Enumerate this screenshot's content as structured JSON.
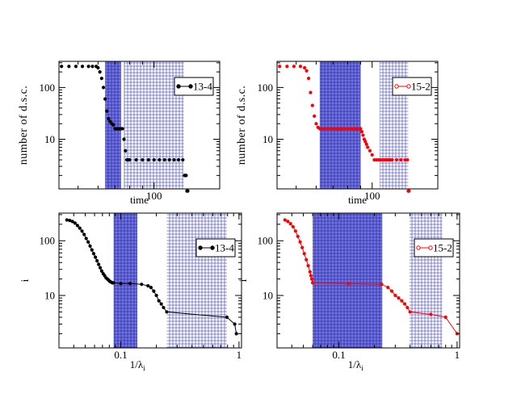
{
  "chart_data": [
    {
      "type": "scatter",
      "panel": "top-left",
      "xscale": "log",
      "yscale": "log",
      "xlim": [
        42,
        182
      ],
      "ylim": [
        1.1,
        320
      ],
      "xticks": [
        {
          "v": 100,
          "label": "100"
        }
      ],
      "yticks": [
        {
          "v": 10,
          "label": "10"
        },
        {
          "v": 100,
          "label": "100"
        }
      ],
      "xlabel": "time",
      "ylabel": "number of d.s.c.",
      "color": "#000000",
      "legend": {
        "label": "13-4",
        "position": "upper-right",
        "marker": "filled-circle"
      },
      "bands": [
        {
          "from": 64,
          "to": 74,
          "pattern": "dense"
        },
        {
          "from": 76,
          "to": 131,
          "pattern": "sparse"
        }
      ],
      "series": [
        {
          "name": "13-4",
          "line": false,
          "x": [
            43,
            46,
            49,
            52,
            55,
            57,
            59,
            60,
            61,
            62,
            63,
            64,
            65,
            66,
            67,
            68,
            69,
            70,
            71,
            72,
            73,
            74,
            75,
            76,
            77,
            78,
            79,
            80,
            85,
            90,
            95,
            100,
            105,
            110,
            115,
            120,
            125,
            130,
            132,
            133,
            134,
            135,
            136
          ],
          "y": [
            256,
            256,
            256,
            256,
            256,
            256,
            256,
            240,
            200,
            150,
            100,
            60,
            35,
            25,
            22,
            20,
            19,
            16,
            16,
            16,
            16,
            16,
            16,
            10,
            6,
            4,
            4,
            4,
            4,
            4,
            4,
            4,
            4,
            4,
            4,
            4,
            4,
            4,
            2,
            2,
            2,
            1,
            1
          ]
        }
      ]
    },
    {
      "type": "scatter",
      "panel": "top-right",
      "xscale": "log",
      "yscale": "log",
      "xlim": [
        42,
        182
      ],
      "ylim": [
        1.1,
        320
      ],
      "xticks": [
        {
          "v": 100,
          "label": "100"
        }
      ],
      "yticks": [
        {
          "v": 10,
          "label": "10"
        },
        {
          "v": 100,
          "label": "100"
        }
      ],
      "xlabel": "time",
      "ylabel": "number of d.s.c.",
      "color": "#ff0000",
      "legend": {
        "label": "15-2",
        "position": "upper-right",
        "marker": "open-circle"
      },
      "bands": [
        {
          "from": 62,
          "to": 90,
          "pattern": "dense"
        },
        {
          "from": 107,
          "to": 139,
          "pattern": "sparse"
        }
      ],
      "series": [
        {
          "name": "15-2",
          "line": false,
          "x": [
            43,
            46,
            49,
            52,
            54,
            55,
            56,
            57,
            58,
            59,
            60,
            61,
            62,
            64,
            66,
            68,
            70,
            72,
            74,
            76,
            78,
            80,
            82,
            84,
            86,
            88,
            90,
            91,
            92,
            93,
            94,
            95,
            96,
            98,
            100,
            102,
            104,
            106,
            108,
            110,
            112,
            114,
            116,
            118,
            120,
            125,
            130,
            135,
            138,
            139,
            140
          ],
          "y": [
            256,
            256,
            256,
            256,
            240,
            210,
            150,
            80,
            45,
            28,
            20,
            17,
            16,
            16,
            16,
            16,
            16,
            16,
            16,
            16,
            16,
            16,
            16,
            16,
            16,
            16,
            16,
            14,
            12,
            10,
            9,
            8,
            7,
            6,
            5,
            4,
            4,
            4,
            4,
            4,
            4,
            4,
            4,
            4,
            4,
            4,
            4,
            4,
            4,
            1,
            1
          ]
        }
      ]
    },
    {
      "type": "line",
      "panel": "bottom-left",
      "xscale": "log",
      "yscale": "log",
      "xlim": [
        0.03,
        1.05
      ],
      "ylim": [
        1.1,
        320
      ],
      "xticks": [
        {
          "v": 0.1,
          "label": "0.1"
        },
        {
          "v": 1,
          "label": "1"
        }
      ],
      "yticks": [
        {
          "v": 10,
          "label": "10"
        },
        {
          "v": 100,
          "label": "100"
        }
      ],
      "xlabel": "1/λ",
      "xlabel_sub": "i",
      "ylabel": "i",
      "color": "#000000",
      "legend": {
        "label": "13-4",
        "position": "upper-right",
        "marker": "filled-circle"
      },
      "bands": [
        {
          "from": 0.087,
          "to": 0.138,
          "pattern": "dense"
        },
        {
          "from": 0.245,
          "to": 0.79,
          "pattern": "sparse"
        }
      ],
      "series": [
        {
          "name": "13-4",
          "line": true,
          "x": [
            0.035,
            0.037,
            0.039,
            0.041,
            0.043,
            0.045,
            0.047,
            0.049,
            0.051,
            0.053,
            0.055,
            0.057,
            0.059,
            0.061,
            0.063,
            0.065,
            0.067,
            0.069,
            0.071,
            0.073,
            0.075,
            0.077,
            0.079,
            0.081,
            0.083,
            0.085,
            0.087,
            0.1,
            0.12,
            0.15,
            0.17,
            0.18,
            0.19,
            0.2,
            0.21,
            0.22,
            0.23,
            0.245,
            0.79,
            0.92,
            0.95
          ],
          "y": [
            240,
            235,
            225,
            210,
            190,
            170,
            150,
            130,
            110,
            95,
            80,
            68,
            58,
            50,
            43,
            37,
            32,
            28,
            25,
            23,
            21,
            20,
            19,
            18,
            17.5,
            17,
            17,
            16.5,
            16.5,
            16,
            15,
            14,
            12,
            10,
            8,
            7,
            6,
            5,
            4,
            3,
            2
          ]
        }
      ]
    },
    {
      "type": "line",
      "panel": "bottom-right",
      "xscale": "log",
      "yscale": "log",
      "xlim": [
        0.03,
        1.05
      ],
      "ylim": [
        1.1,
        320
      ],
      "xticks": [
        {
          "v": 0.1,
          "label": "0.1"
        },
        {
          "v": 1,
          "label": "1"
        }
      ],
      "yticks": [
        {
          "v": 10,
          "label": "10"
        },
        {
          "v": 100,
          "label": "100"
        }
      ],
      "xlabel": "1/λ",
      "xlabel_sub": "i",
      "ylabel": "i",
      "color": "#ff0000",
      "legend": {
        "label": "15-2",
        "position": "upper-right",
        "marker": "open-circle"
      },
      "bands": [
        {
          "from": 0.06,
          "to": 0.233,
          "pattern": "dense"
        },
        {
          "from": 0.395,
          "to": 0.75,
          "pattern": "sparse"
        }
      ],
      "series": [
        {
          "name": "15-2",
          "line": true,
          "x": [
            0.035,
            0.037,
            0.039,
            0.041,
            0.043,
            0.045,
            0.047,
            0.049,
            0.051,
            0.053,
            0.055,
            0.057,
            0.058,
            0.059,
            0.06,
            0.12,
            0.23,
            0.26,
            0.28,
            0.3,
            0.32,
            0.34,
            0.36,
            0.38,
            0.4,
            0.6,
            0.8,
            1.0
          ],
          "y": [
            240,
            225,
            205,
            180,
            150,
            120,
            95,
            75,
            58,
            45,
            35,
            27,
            23,
            20,
            17,
            16.5,
            16,
            14,
            12,
            10,
            9,
            8,
            7,
            6,
            5,
            4.5,
            4,
            2
          ]
        }
      ]
    }
  ]
}
